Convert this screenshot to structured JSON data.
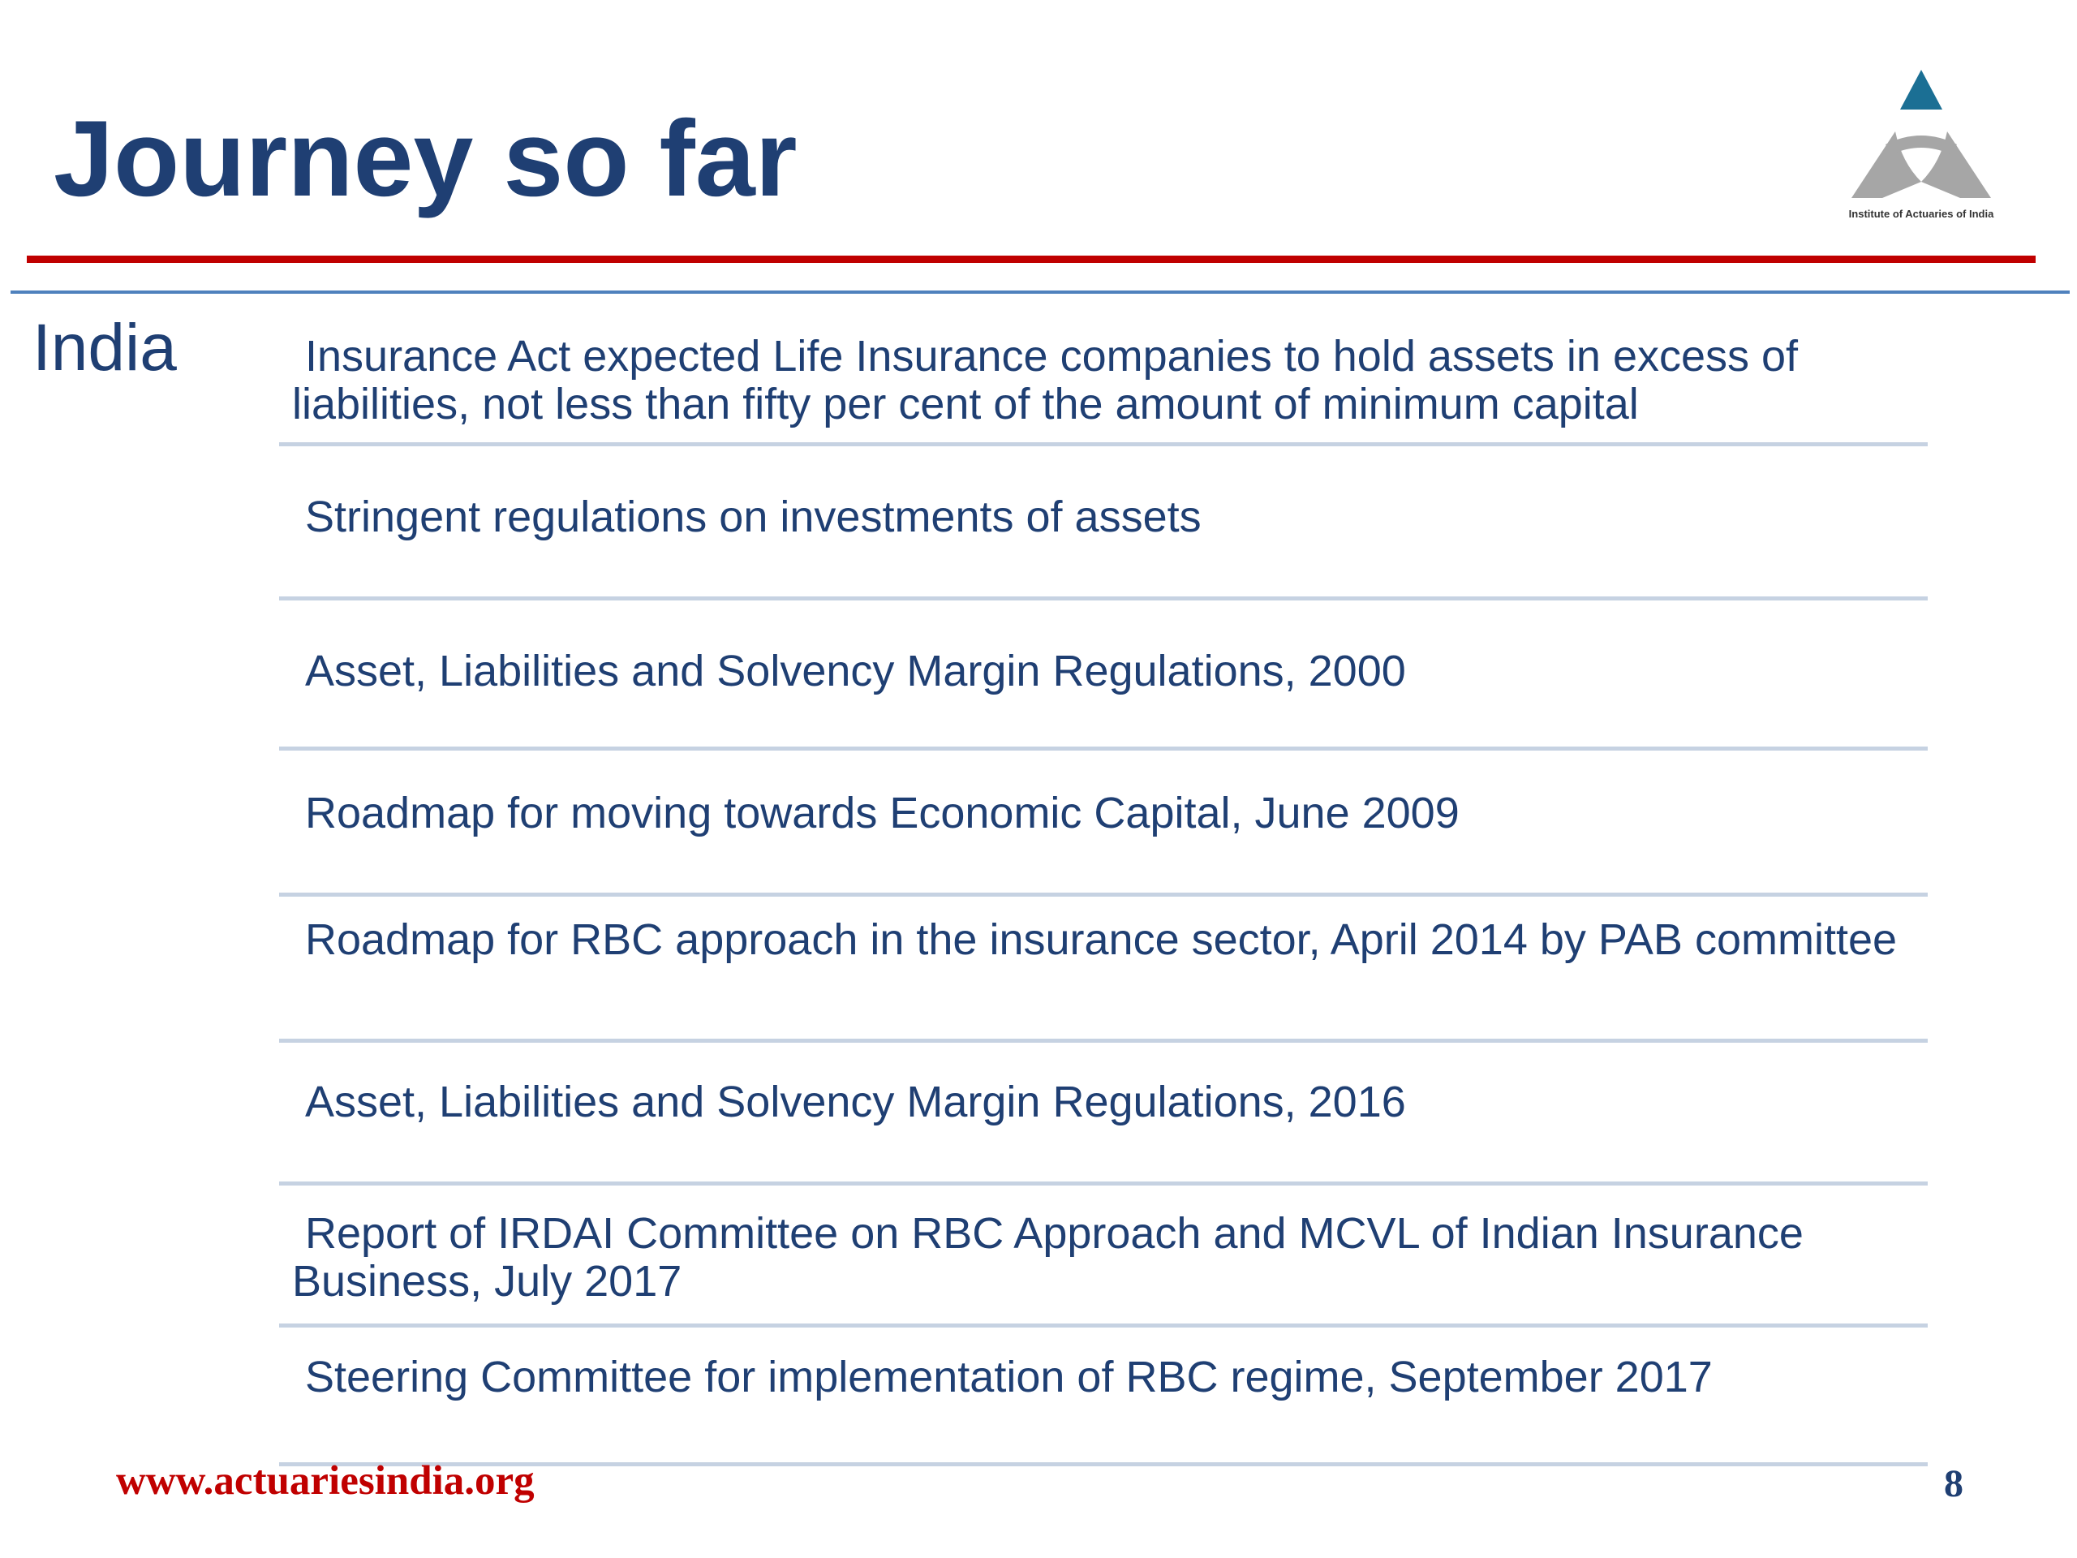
{
  "slide": {
    "title": "Journey so far",
    "section_label": "India",
    "logo": {
      "icon": "institute-of-actuaries-of-india-logo",
      "caption": "Institute of Actuaries of India",
      "colors": {
        "triangle": "#1b6f94",
        "arcs": "#a6a6a6"
      }
    },
    "items": [
      {
        "text": "Insurance Act expected Life Insurance companies to hold assets in excess of liabilities, not less than fifty per cent of the amount of minimum capital"
      },
      {
        "text": "Stringent regulations on investments of assets"
      },
      {
        "text": "Asset, Liabilities and Solvency Margin Regulations, 2000"
      },
      {
        "text": "Roadmap for moving towards Economic Capital, June 2009"
      },
      {
        "text": "Roadmap for RBC approach in the insurance sector, April 2014 by PAB committee"
      },
      {
        "text": "Asset, Liabilities and Solvency Margin Regulations, 2016"
      },
      {
        "text": "Report of IRDAI Committee on RBC Approach and MCVL of Indian Insurance Business, July 2017"
      },
      {
        "text": "Steering Committee for implementation of RBC regime, September 2017"
      }
    ],
    "footer": {
      "url": "www.actuariesindia.org",
      "page_number": "8"
    },
    "colors": {
      "title": "#1f3f73",
      "red_rule": "#c00000",
      "blue_rule": "#4f81bd",
      "divider": "#c6d2e2",
      "footer_url": "#c00000"
    }
  }
}
